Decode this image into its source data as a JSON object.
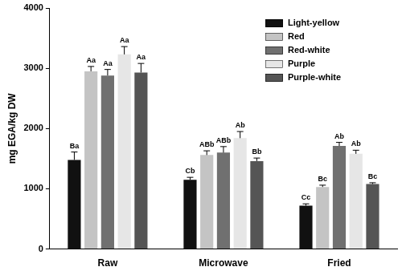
{
  "chart_data": {
    "type": "bar",
    "y_label": "mg EGA/kg DW",
    "categories": [
      "Raw",
      "Microwave",
      "Fried"
    ],
    "ylim": [
      0,
      4000
    ],
    "yticks": [
      0,
      1000,
      2000,
      3000,
      4000
    ],
    "grid": false,
    "legend": "upper right",
    "series": [
      {
        "name": "Light-yellow",
        "color": "#111111",
        "values": [
          1480,
          1150,
          720
        ],
        "errors": [
          130,
          40,
          30
        ],
        "letters": [
          "Ba",
          "Cb",
          "Cc"
        ]
      },
      {
        "name": "Red",
        "color": "#c4c4c4",
        "values": [
          2950,
          1560,
          1030
        ],
        "errors": [
          80,
          70,
          30
        ],
        "letters": [
          "Aa",
          "ABb",
          "Bc"
        ]
      },
      {
        "name": "Red-white",
        "color": "#707070",
        "values": [
          2880,
          1600,
          1710
        ],
        "errors": [
          100,
          100,
          60
        ],
        "letters": [
          "Aa",
          "ABb",
          "Ab"
        ]
      },
      {
        "name": "Purple",
        "color": "#e6e6e6",
        "values": [
          3230,
          1840,
          1580
        ],
        "errors": [
          130,
          110,
          60
        ],
        "letters": [
          "Aa",
          "Ab",
          "Ab"
        ]
      },
      {
        "name": "Purple-white",
        "color": "#555555",
        "values": [
          2930,
          1460,
          1080
        ],
        "errors": [
          150,
          50,
          20
        ],
        "letters": [
          "Aa",
          "Bb",
          "Bc"
        ]
      }
    ]
  }
}
